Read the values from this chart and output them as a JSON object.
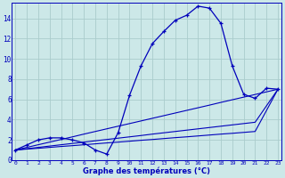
{
  "xlabel": "Graphe des températures (°C)",
  "background_color": "#cce8e8",
  "grid_color": "#aacccc",
  "line_color": "#0000bb",
  "hours": [
    0,
    1,
    2,
    3,
    4,
    5,
    6,
    7,
    8,
    9,
    10,
    11,
    12,
    13,
    14,
    15,
    16,
    17,
    18,
    19,
    20,
    21,
    22,
    23
  ],
  "temp_actual": [
    1.0,
    1.5,
    2.0,
    2.2,
    2.2,
    2.0,
    1.7,
    1.0,
    0.6,
    2.7,
    6.4,
    9.3,
    11.5,
    12.7,
    13.8,
    14.3,
    15.2,
    15.0,
    13.5,
    9.3,
    6.5,
    6.1,
    7.1,
    7.0
  ],
  "temp_line1": [
    1.0,
    1.26,
    1.52,
    1.78,
    2.04,
    2.3,
    2.57,
    2.83,
    3.09,
    3.35,
    3.61,
    3.87,
    4.13,
    4.39,
    4.65,
    4.91,
    5.17,
    5.43,
    5.7,
    5.96,
    6.22,
    6.48,
    6.74,
    7.0
  ],
  "temp_line2": [
    1.0,
    1.13,
    1.26,
    1.39,
    1.52,
    1.65,
    1.78,
    1.91,
    2.04,
    2.17,
    2.3,
    2.43,
    2.57,
    2.7,
    2.83,
    2.96,
    3.09,
    3.22,
    3.35,
    3.48,
    3.61,
    3.74,
    5.37,
    7.0
  ],
  "temp_line3": [
    1.0,
    1.09,
    1.17,
    1.26,
    1.35,
    1.43,
    1.52,
    1.61,
    1.7,
    1.78,
    1.87,
    1.96,
    2.04,
    2.13,
    2.22,
    2.3,
    2.39,
    2.48,
    2.57,
    2.65,
    2.74,
    2.83,
    4.91,
    7.0
  ],
  "ylim": [
    0,
    15.5
  ],
  "xlim": [
    -0.3,
    23.3
  ],
  "yticks": [
    0,
    2,
    4,
    6,
    8,
    10,
    12,
    14
  ],
  "xticks": [
    0,
    1,
    2,
    3,
    4,
    5,
    6,
    7,
    8,
    9,
    10,
    11,
    12,
    13,
    14,
    15,
    16,
    17,
    18,
    19,
    20,
    21,
    22,
    23
  ]
}
